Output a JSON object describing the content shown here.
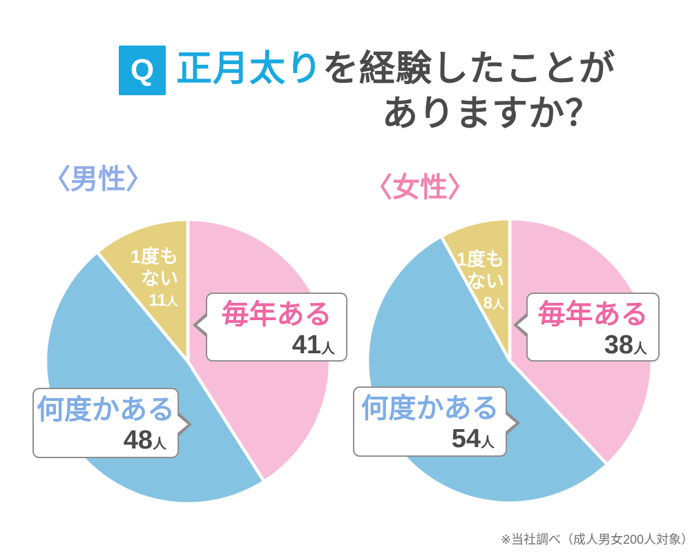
{
  "title": {
    "q_badge": "Q",
    "highlight": "正月太り",
    "line1_rest": "を経験したことが",
    "line2": "ありますか？"
  },
  "footnote": "※当社調べ（成人男女200人対象）",
  "colors": {
    "accent_cyan": "#19A8E0",
    "title_text": "#4A4A4A",
    "male_heading": "#8FACE8",
    "female_heading": "#F083B0",
    "bubble_border": "#8E8E8E",
    "every_year_text": "#EF66A2",
    "several_times_text": "#7EACE6",
    "slice_pink": "#F8BED9",
    "slice_blue": "#85C3E3",
    "slice_yellow": "#E4D07E"
  },
  "chart_data": [
    {
      "type": "pie",
      "title": "〈男性〉",
      "labels": [
        "毎年ある",
        "何度かある",
        "1度もない"
      ],
      "values": [
        41,
        48,
        11
      ],
      "unit": "人",
      "never_lines": [
        "1度も",
        "ない"
      ],
      "colors": [
        "#F8BED9",
        "#85C3E3",
        "#E4D07E"
      ],
      "start_angle": 0,
      "direction": "clockwise",
      "total": 100
    },
    {
      "type": "pie",
      "title": "〈女性〉",
      "labels": [
        "毎年ある",
        "何度かある",
        "1度もない"
      ],
      "values": [
        38,
        54,
        8
      ],
      "unit": "人",
      "never_lines": [
        "1度も",
        "ない"
      ],
      "colors": [
        "#F8BED9",
        "#85C3E3",
        "#E4D07E"
      ],
      "start_angle": 0,
      "direction": "clockwise",
      "total": 100
    }
  ]
}
